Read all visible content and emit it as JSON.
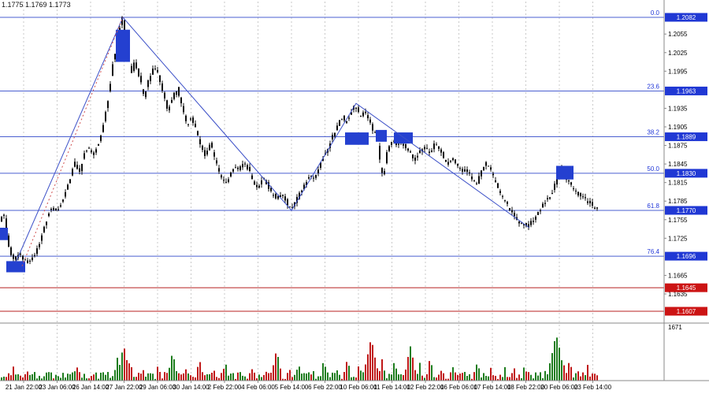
{
  "window": {
    "quote_text": "1.1775 1.1769 1.1773"
  },
  "colors": {
    "background": "#ffffff",
    "candle": "#0d0d0d",
    "grid": "#c9c9c9",
    "fib_line": "#4a5fd0",
    "fib_text": "#2036d8",
    "fib_badge_bg": "#2038d4",
    "red_line": "#b82222",
    "red_badge_bg": "#cc1414",
    "badge_text": "#ffffff",
    "highlight_box": "#2440d0",
    "zigzag": "#3c50c8",
    "trend_dotted": "#d05050",
    "volume_up": "#1e7d1e",
    "volume_down": "#c01818",
    "axis_text": "#000000",
    "axis_line": "#8a8a8a"
  },
  "chart_data": {
    "type": "candlestick",
    "instrument_hint": "EUR/USD hourly chart with Fibonacci retracement",
    "quote_text": "1.1775 1.1769 1.1773",
    "volume_scale_label": "1671",
    "y_ticks": [
      "1.2055",
      "1.2025",
      "1.1995",
      "1.1935",
      "1.1905",
      "1.1875",
      "1.1845",
      "1.1815",
      "1.1785",
      "1.1755",
      "1.1725",
      "1.1665",
      "1.1635"
    ],
    "x_labels": [
      "21 Jan 22:00",
      "23 Jan 06:00",
      "26 Jan 14:00",
      "27 Jan 22:00",
      "29 Jan 06:00",
      "30 Jan 14:00",
      "2 Feb 22:00",
      "4 Feb 06:00",
      "5 Feb 14:00",
      "6 Feb 22:00",
      "10 Feb 06:00",
      "11 Feb 14:00",
      "12 Feb 22:00",
      "16 Feb 06:00",
      "17 Feb 14:00",
      "18 Feb 22:00",
      "20 Feb 06:00",
      "23 Feb 14:00"
    ],
    "fib_levels": [
      {
        "label": "0.0",
        "price": 1.2082,
        "price_label": "1.2082"
      },
      {
        "label": "23.6",
        "price": 1.1963,
        "price_label": "1.1963"
      },
      {
        "label": "38.2",
        "price": 1.1889,
        "price_label": "1.1889"
      },
      {
        "label": "50.0",
        "price": 1.183,
        "price_label": "1.1830"
      },
      {
        "label": "61.8",
        "price": 1.177,
        "price_label": "1.1770"
      },
      {
        "label": "76.4",
        "price": 1.1696,
        "price_label": "1.1696"
      }
    ],
    "support_levels": [
      {
        "price": 1.1645,
        "price_label": "1.1645"
      },
      {
        "price": 1.1607,
        "price_label": "1.1607"
      }
    ],
    "zigzag": [
      [
        20,
        1.1686
      ],
      [
        156,
        1.2082
      ],
      [
        370,
        1.177
      ],
      [
        452,
        1.1943
      ],
      [
        672,
        1.1742
      ]
    ],
    "trend_dotted": [
      [
        28,
        1.168
      ],
      [
        156,
        1.2082
      ]
    ],
    "highlight_boxes": [
      [
        0,
        10,
        1.1742,
        1.1722
      ],
      [
        8,
        24,
        1.1688,
        1.167
      ],
      [
        147,
        18,
        1.2062,
        1.201
      ],
      [
        438,
        30,
        1.1896,
        1.1876
      ],
      [
        477,
        14,
        1.19,
        1.1881
      ],
      [
        500,
        24,
        1.1896,
        1.1878
      ],
      [
        706,
        22,
        1.1842,
        1.182
      ]
    ],
    "price_path": [
      [
        0,
        1.1748
      ],
      [
        6,
        1.1765
      ],
      [
        12,
        1.1712
      ],
      [
        18,
        1.169
      ],
      [
        26,
        1.1698
      ],
      [
        34,
        1.1686
      ],
      [
        42,
        1.1695
      ],
      [
        50,
        1.171
      ],
      [
        58,
        1.1748
      ],
      [
        66,
        1.1776
      ],
      [
        74,
        1.1768
      ],
      [
        82,
        1.179
      ],
      [
        90,
        1.1822
      ],
      [
        96,
        1.1848
      ],
      [
        102,
        1.1832
      ],
      [
        108,
        1.186
      ],
      [
        114,
        1.1872
      ],
      [
        120,
        1.1858
      ],
      [
        126,
        1.1878
      ],
      [
        132,
        1.1905
      ],
      [
        138,
        1.195
      ],
      [
        144,
        1.2005
      ],
      [
        150,
        1.2048
      ],
      [
        156,
        1.2082
      ],
      [
        160,
        1.2055
      ],
      [
        164,
        1.2018
      ],
      [
        168,
        1.1992
      ],
      [
        172,
        1.2012
      ],
      [
        178,
        1.1985
      ],
      [
        184,
        1.1952
      ],
      [
        190,
        1.1982
      ],
      [
        196,
        1.2002
      ],
      [
        202,
        1.1988
      ],
      [
        208,
        1.1958
      ],
      [
        214,
        1.1932
      ],
      [
        220,
        1.1952
      ],
      [
        226,
        1.1968
      ],
      [
        232,
        1.1938
      ],
      [
        238,
        1.1908
      ],
      [
        244,
        1.1922
      ],
      [
        250,
        1.1898
      ],
      [
        256,
        1.1872
      ],
      [
        262,
        1.1858
      ],
      [
        268,
        1.1882
      ],
      [
        274,
        1.1852
      ],
      [
        280,
        1.1828
      ],
      [
        286,
        1.1814
      ],
      [
        292,
        1.1824
      ],
      [
        298,
        1.1838
      ],
      [
        304,
        1.1834
      ],
      [
        310,
        1.1848
      ],
      [
        316,
        1.1838
      ],
      [
        322,
        1.1818
      ],
      [
        328,
        1.1808
      ],
      [
        334,
        1.1822
      ],
      [
        340,
        1.1812
      ],
      [
        346,
        1.1798
      ],
      [
        352,
        1.179
      ],
      [
        358,
        1.1795
      ],
      [
        364,
        1.1785
      ],
      [
        370,
        1.1772
      ],
      [
        376,
        1.1784
      ],
      [
        382,
        1.1798
      ],
      [
        388,
        1.1812
      ],
      [
        394,
        1.1826
      ],
      [
        400,
        1.182
      ],
      [
        406,
        1.1842
      ],
      [
        412,
        1.1858
      ],
      [
        418,
        1.1872
      ],
      [
        424,
        1.1892
      ],
      [
        430,
        1.1908
      ],
      [
        436,
        1.1922
      ],
      [
        440,
        1.1908
      ],
      [
        446,
        1.1928
      ],
      [
        452,
        1.194
      ],
      [
        458,
        1.1922
      ],
      [
        464,
        1.1932
      ],
      [
        470,
        1.1912
      ],
      [
        476,
        1.1896
      ],
      [
        480,
        1.1886
      ],
      [
        484,
        1.1842
      ],
      [
        488,
        1.1826
      ],
      [
        492,
        1.1866
      ],
      [
        498,
        1.1882
      ],
      [
        504,
        1.1876
      ],
      [
        510,
        1.1882
      ],
      [
        516,
        1.1872
      ],
      [
        522,
        1.1862
      ],
      [
        528,
        1.1852
      ],
      [
        534,
        1.1864
      ],
      [
        540,
        1.1872
      ],
      [
        546,
        1.1862
      ],
      [
        552,
        1.1876
      ],
      [
        558,
        1.187
      ],
      [
        564,
        1.1856
      ],
      [
        570,
        1.1846
      ],
      [
        576,
        1.1852
      ],
      [
        582,
        1.1842
      ],
      [
        588,
        1.1832
      ],
      [
        594,
        1.1836
      ],
      [
        600,
        1.182
      ],
      [
        606,
        1.1812
      ],
      [
        612,
        1.1832
      ],
      [
        618,
        1.1845
      ],
      [
        624,
        1.1835
      ],
      [
        630,
        1.1815
      ],
      [
        636,
        1.1798
      ],
      [
        642,
        1.1785
      ],
      [
        648,
        1.1772
      ],
      [
        654,
        1.1758
      ],
      [
        660,
        1.175
      ],
      [
        666,
        1.1748
      ],
      [
        672,
        1.1744
      ],
      [
        678,
        1.1756
      ],
      [
        684,
        1.1768
      ],
      [
        690,
        1.1778
      ],
      [
        696,
        1.1788
      ],
      [
        702,
        1.18
      ],
      [
        708,
        1.1822
      ],
      [
        712,
        1.184
      ],
      [
        716,
        1.1832
      ],
      [
        722,
        1.1816
      ],
      [
        728,
        1.1806
      ],
      [
        734,
        1.1798
      ],
      [
        740,
        1.1792
      ],
      [
        746,
        1.1786
      ],
      [
        752,
        1.178
      ],
      [
        758,
        1.1773
      ]
    ],
    "volume_spikes": [
      [
        16,
        18
      ],
      [
        34,
        14
      ],
      [
        58,
        12
      ],
      [
        96,
        22
      ],
      [
        120,
        16
      ],
      [
        148,
        30
      ],
      [
        156,
        46
      ],
      [
        164,
        28
      ],
      [
        180,
        20
      ],
      [
        200,
        24
      ],
      [
        218,
        38
      ],
      [
        236,
        20
      ],
      [
        252,
        30
      ],
      [
        270,
        18
      ],
      [
        285,
        26
      ],
      [
        302,
        16
      ],
      [
        320,
        22
      ],
      [
        336,
        18
      ],
      [
        350,
        42
      ],
      [
        366,
        20
      ],
      [
        378,
        24
      ],
      [
        396,
        18
      ],
      [
        410,
        28
      ],
      [
        426,
        20
      ],
      [
        440,
        30
      ],
      [
        455,
        24
      ],
      [
        470,
        56
      ],
      [
        484,
        30
      ],
      [
        500,
        28
      ],
      [
        520,
        46
      ],
      [
        532,
        24
      ],
      [
        545,
        30
      ],
      [
        560,
        20
      ],
      [
        575,
        22
      ],
      [
        590,
        18
      ],
      [
        605,
        26
      ],
      [
        622,
        18
      ],
      [
        640,
        20
      ],
      [
        652,
        16
      ],
      [
        665,
        22
      ],
      [
        680,
        18
      ],
      [
        692,
        20
      ],
      [
        705,
        62
      ],
      [
        714,
        26
      ],
      [
        722,
        30
      ],
      [
        734,
        18
      ],
      [
        745,
        22
      ]
    ]
  }
}
